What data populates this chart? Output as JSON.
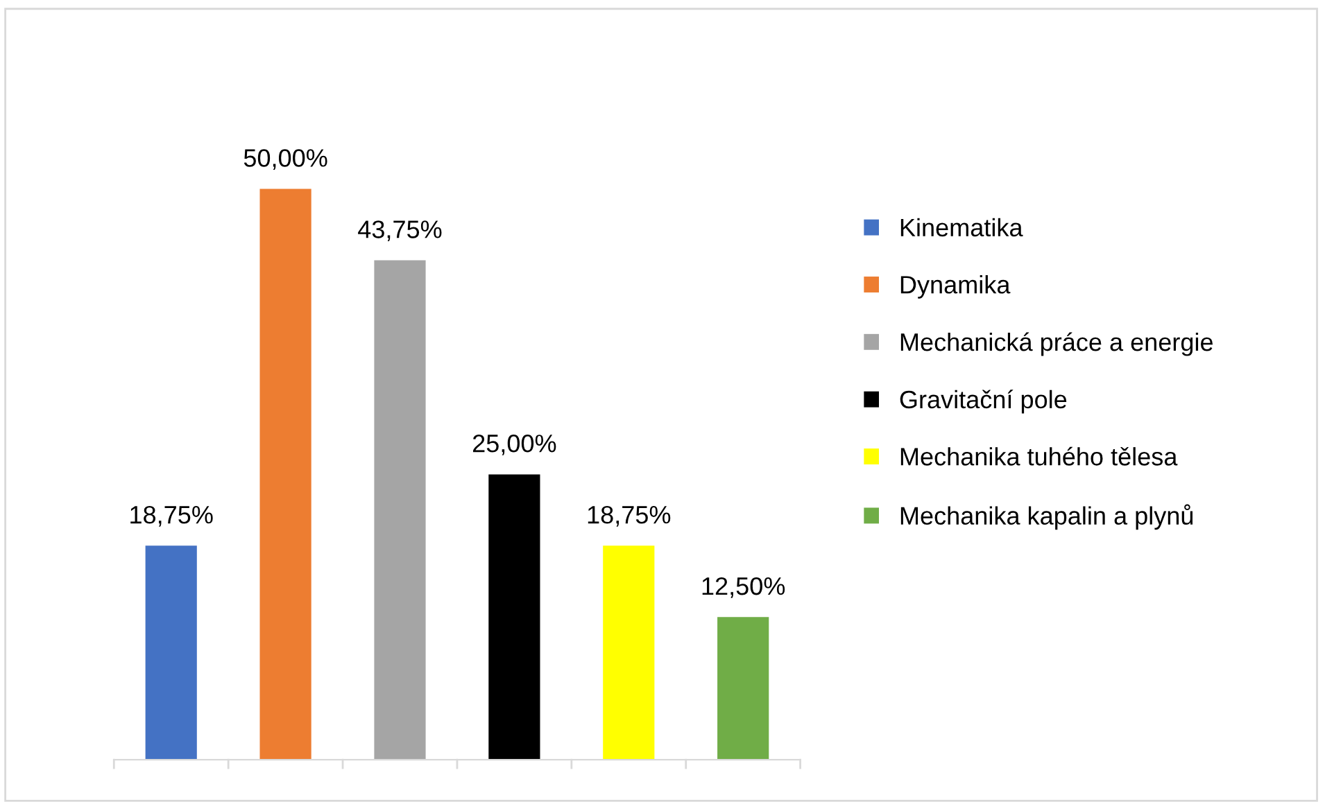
{
  "chart_data": {
    "type": "bar",
    "stacked": true,
    "categories": [
      null,
      null,
      null,
      null,
      null,
      null
    ],
    "series": [
      {
        "name": "Kinematika",
        "color": "#4472c4",
        "values": [
          18.75,
          null,
          null,
          null,
          null,
          null
        ],
        "value_labels": [
          "18,75%",
          null,
          null,
          null,
          null,
          null
        ]
      },
      {
        "name": "Dynamika",
        "color": "#ed7d31",
        "values": [
          null,
          50,
          null,
          null,
          null,
          null
        ],
        "value_labels": [
          null,
          "50,00%",
          null,
          null,
          null,
          null
        ]
      },
      {
        "name": "Mechanická práce a energie",
        "color": "#a5a5a5",
        "values": [
          null,
          null,
          43.75,
          null,
          null,
          null
        ],
        "value_labels": [
          null,
          null,
          "43,75%",
          null,
          null,
          null
        ]
      },
      {
        "name": "Gravitační pole",
        "color": "#000000",
        "values": [
          null,
          null,
          null,
          25,
          null,
          null
        ],
        "value_labels": [
          null,
          null,
          null,
          "25,00%",
          null,
          null
        ]
      },
      {
        "name": "Mechanika tuhého tělesa",
        "color": "#ffff00",
        "values": [
          null,
          null,
          null,
          null,
          18.75,
          null
        ],
        "value_labels": [
          null,
          null,
          null,
          null,
          "18,75%",
          null
        ]
      },
      {
        "name": "Mechanika kapalin a plynů",
        "color": "#70ad47",
        "values": [
          null,
          null,
          null,
          null,
          null,
          12.5
        ],
        "value_labels": [
          null,
          null,
          null,
          null,
          null,
          "12,50%"
        ]
      }
    ],
    "legend": "right"
  }
}
